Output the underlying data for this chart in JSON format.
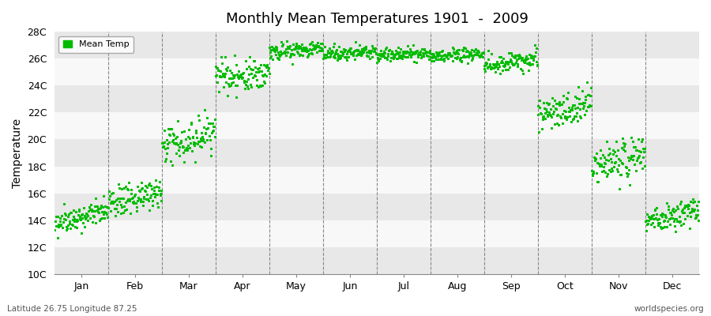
{
  "title": "Monthly Mean Temperatures 1901  -  2009",
  "ylabel": "Temperature",
  "xlabel": "",
  "bottom_left_label": "Latitude 26.75 Longitude 87.25",
  "bottom_right_label": "worldspecies.org",
  "legend_label": "Mean Temp",
  "dot_color": "#00BB00",
  "background_color": "#FFFFFF",
  "plot_bg_color": "#F0F0F0",
  "ylim": [
    10,
    28
  ],
  "yticks": [
    10,
    12,
    14,
    16,
    18,
    20,
    22,
    24,
    26,
    28
  ],
  "ytick_labels": [
    "10C",
    "12C",
    "14C",
    "16C",
    "18C",
    "20C",
    "22C",
    "24C",
    "26C",
    "28C"
  ],
  "months": [
    "Jan",
    "Feb",
    "Mar",
    "Apr",
    "May",
    "Jun",
    "Jul",
    "Aug",
    "Sep",
    "Oct",
    "Nov",
    "Dec"
  ],
  "month_means": [
    13.8,
    15.2,
    19.5,
    24.5,
    26.5,
    26.3,
    26.2,
    26.1,
    25.5,
    22.0,
    18.0,
    14.0
  ],
  "month_stds": [
    0.9,
    1.1,
    1.5,
    1.2,
    0.6,
    0.5,
    0.5,
    0.5,
    0.8,
    1.2,
    1.5,
    1.0
  ],
  "month_trends": [
    0.008,
    0.008,
    0.01,
    0.005,
    0.003,
    0.003,
    0.003,
    0.003,
    0.004,
    0.006,
    0.008,
    0.007
  ],
  "n_years": 109,
  "year_start": 1901,
  "seed": 42
}
